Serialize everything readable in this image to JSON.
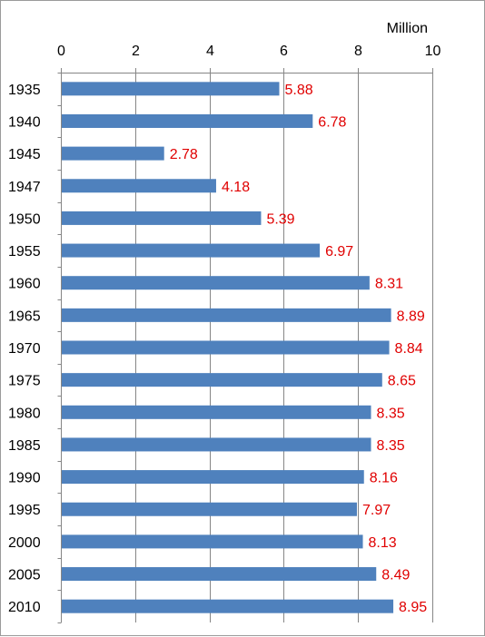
{
  "chart_data": {
    "type": "bar",
    "orientation": "horizontal",
    "axis_position": "top",
    "unit_label": "Million",
    "categories": [
      "1935",
      "1940",
      "1945",
      "1947",
      "1950",
      "1955",
      "1960",
      "1965",
      "1970",
      "1975",
      "1980",
      "1985",
      "1990",
      "1995",
      "2000",
      "2005",
      "2010"
    ],
    "values": [
      5.88,
      6.78,
      2.78,
      4.18,
      5.39,
      6.97,
      8.31,
      8.89,
      8.84,
      8.65,
      8.35,
      8.35,
      8.16,
      7.97,
      8.13,
      8.49,
      8.95
    ],
    "data_labels": [
      "5.88",
      "6.78",
      "2.78",
      "4.18",
      "5.39",
      "6.97",
      "8.31",
      "8.89",
      "8.84",
      "8.65",
      "8.35",
      "8.35",
      "8.16",
      "7.97",
      "8.13",
      "8.49",
      "8.95"
    ],
    "xlim": [
      0,
      10
    ],
    "xticks": [
      0,
      2,
      4,
      6,
      8,
      10
    ],
    "xtick_labels": [
      "0",
      "2",
      "4",
      "6",
      "8",
      "10"
    ],
    "grid": "vertical",
    "colors": {
      "bar": "#4f81bd",
      "data_label": "#e00000",
      "grid": "#868686",
      "axis": "#868686"
    }
  }
}
